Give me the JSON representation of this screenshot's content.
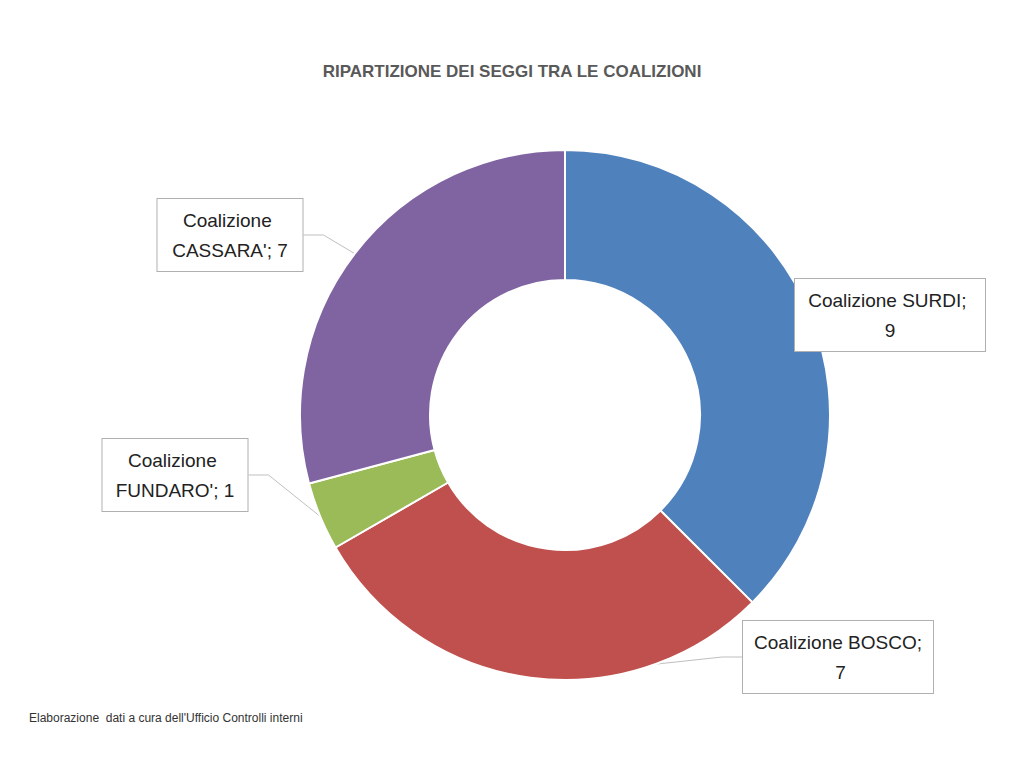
{
  "chart_data": {
    "type": "pie",
    "title": "RIPARTIZIONE DEI SEGGI TRA LE COALIZIONI",
    "note": "Elaborazione  dati a cura dell'Ufficio Controlli interni",
    "categories": [
      "Coalizione SURDI",
      "Coalizione BOSCO",
      "Coalizione FUNDARO'",
      "Coalizione CASSARA'"
    ],
    "values": [
      9,
      7,
      1,
      7
    ],
    "value_labels": [
      "Coalizione SURDI; 9",
      "Coalizione BOSCO; 7",
      "Coalizione FUNDARO'; 1",
      "Coalizione CASSARA'; 7"
    ],
    "colors": [
      "#4f81bd",
      "#c0504d",
      "#9bbb59",
      "#8064a2"
    ],
    "data_labels": true
  }
}
